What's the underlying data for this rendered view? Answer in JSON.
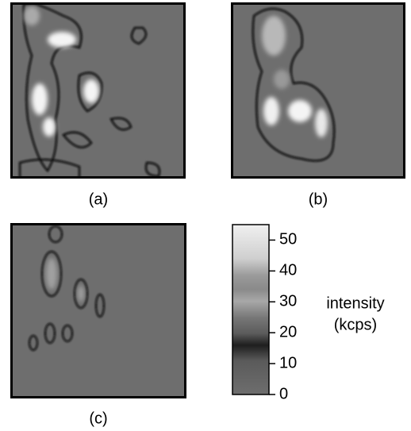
{
  "panels": [
    {
      "label": "(a)"
    },
    {
      "label": "(b)"
    },
    {
      "label": "(c)"
    }
  ],
  "colorbar": {
    "lim": [
      0,
      55
    ],
    "ticks": [
      0,
      10,
      20,
      30,
      40,
      50
    ],
    "label": [
      "intensity",
      "(kcps)"
    ]
  }
}
